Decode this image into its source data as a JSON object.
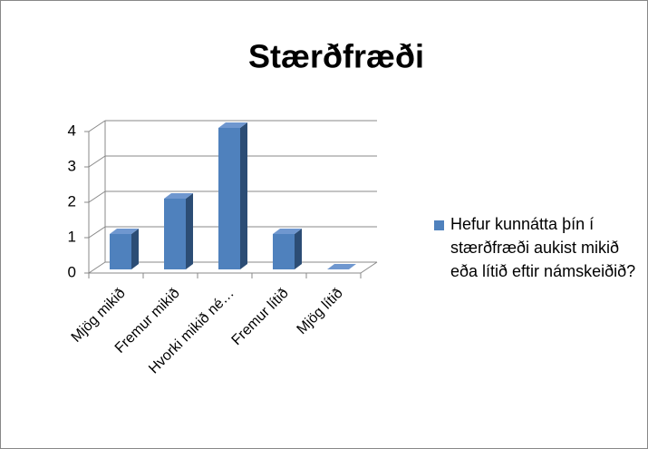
{
  "chart_data": {
    "type": "bar",
    "title": "Stærðfræði",
    "categories": [
      "Mjög mikið",
      "Fremur mikið",
      "Hvorki mikið né…",
      "Fremur lítið",
      "Mjög lítið"
    ],
    "series": [
      {
        "name": "Hefur kunnátta þín í stærðfræði aukist mikið eða lítið eftir námskeiðið?",
        "color": "#4f81bd",
        "values": [
          1,
          2,
          4,
          1,
          0
        ]
      }
    ],
    "ylim": [
      0,
      4
    ],
    "yticks": [
      0,
      1,
      2,
      3,
      4
    ],
    "grid": true,
    "legend": "right"
  }
}
